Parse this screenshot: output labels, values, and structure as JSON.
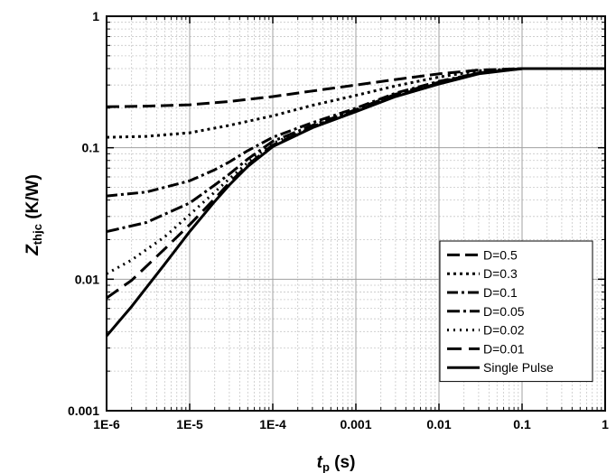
{
  "chart_data": {
    "type": "line",
    "title": "",
    "x_scale": "log",
    "y_scale": "log",
    "xlim": [
      1e-06,
      1
    ],
    "ylim": [
      0.001,
      1
    ],
    "grid": true,
    "legend_position": "bottom-right",
    "xlabel": {
      "main": "t",
      "sub": "p",
      "unit": " (s)"
    },
    "ylabel": {
      "main": "Z",
      "sub": "thjc",
      "unit": " (K/W)"
    },
    "x_ticks": [
      {
        "value": 1e-06,
        "label": "1E-6"
      },
      {
        "value": 1e-05,
        "label": "1E-5"
      },
      {
        "value": 0.0001,
        "label": "1E-4"
      },
      {
        "value": 0.001,
        "label": "0.001"
      },
      {
        "value": 0.01,
        "label": "0.01"
      },
      {
        "value": 0.1,
        "label": "0.1"
      },
      {
        "value": 1,
        "label": "1"
      }
    ],
    "y_ticks": [
      {
        "value": 0.001,
        "label": "0.001"
      },
      {
        "value": 0.01,
        "label": "0.01"
      },
      {
        "value": 0.1,
        "label": "0.1"
      },
      {
        "value": 1,
        "label": "1"
      }
    ],
    "series": [
      {
        "name": "D=0.5",
        "dash": "14,6",
        "x": [
          1e-06,
          3e-06,
          1e-05,
          3e-05,
          0.0001,
          0.0003,
          0.001,
          0.003,
          0.01,
          0.03,
          0.1,
          1
        ],
        "y": [
          0.205,
          0.207,
          0.212,
          0.225,
          0.245,
          0.27,
          0.3,
          0.33,
          0.365,
          0.39,
          0.4,
          0.4
        ]
      },
      {
        "name": "D=0.3",
        "dash": "3,4",
        "x": [
          1e-06,
          3e-06,
          1e-05,
          3e-05,
          0.0001,
          0.0003,
          0.001,
          0.003,
          0.01,
          0.03,
          0.1,
          1
        ],
        "y": [
          0.12,
          0.122,
          0.13,
          0.148,
          0.175,
          0.21,
          0.25,
          0.295,
          0.345,
          0.385,
          0.4,
          0.4
        ]
      },
      {
        "name": "D=0.1",
        "dash": "12,4,3,4",
        "x": [
          1e-06,
          3e-06,
          1e-05,
          2e-05,
          3e-05,
          5e-05,
          0.0001,
          0.0003,
          0.001,
          0.003,
          0.01,
          0.03,
          0.1,
          1
        ],
        "y": [
          0.043,
          0.046,
          0.056,
          0.068,
          0.078,
          0.095,
          0.12,
          0.155,
          0.2,
          0.26,
          0.32,
          0.37,
          0.4,
          0.4
        ]
      },
      {
        "name": "D=0.05",
        "dash": "14,4,3,4",
        "x": [
          1e-06,
          3e-06,
          1e-05,
          2e-05,
          3e-05,
          5e-05,
          0.0001,
          0.0003,
          0.001,
          0.003,
          0.01,
          0.03,
          0.1,
          1
        ],
        "y": [
          0.023,
          0.027,
          0.038,
          0.052,
          0.063,
          0.082,
          0.112,
          0.148,
          0.195,
          0.255,
          0.315,
          0.37,
          0.4,
          0.4
        ]
      },
      {
        "name": "D=0.02",
        "dash": "2,5",
        "x": [
          1e-06,
          2e-06,
          5e-06,
          1e-05,
          2e-05,
          3e-05,
          5e-05,
          0.0001,
          0.0003,
          0.001,
          0.003,
          0.01,
          0.03,
          0.1,
          1
        ],
        "y": [
          0.011,
          0.014,
          0.021,
          0.031,
          0.046,
          0.058,
          0.077,
          0.108,
          0.145,
          0.192,
          0.25,
          0.31,
          0.37,
          0.4,
          0.4
        ]
      },
      {
        "name": "D=0.01",
        "dash": "16,8",
        "x": [
          1e-06,
          2e-06,
          5e-06,
          1e-05,
          2e-05,
          3e-05,
          5e-05,
          0.0001,
          0.0003,
          0.001,
          0.003,
          0.01,
          0.03,
          0.1,
          1
        ],
        "y": [
          0.0072,
          0.0098,
          0.017,
          0.026,
          0.041,
          0.054,
          0.074,
          0.105,
          0.143,
          0.19,
          0.248,
          0.31,
          0.37,
          0.4,
          0.4
        ]
      },
      {
        "name": "Single Pulse",
        "dash": "",
        "x": [
          1e-06,
          2e-06,
          5e-06,
          1e-05,
          2e-05,
          3e-05,
          5e-05,
          0.0001,
          0.0003,
          0.001,
          0.003,
          0.01,
          0.03,
          0.1,
          1
        ],
        "y": [
          0.0037,
          0.0062,
          0.013,
          0.023,
          0.039,
          0.052,
          0.072,
          0.102,
          0.142,
          0.188,
          0.245,
          0.305,
          0.365,
          0.4,
          0.4
        ]
      }
    ]
  }
}
